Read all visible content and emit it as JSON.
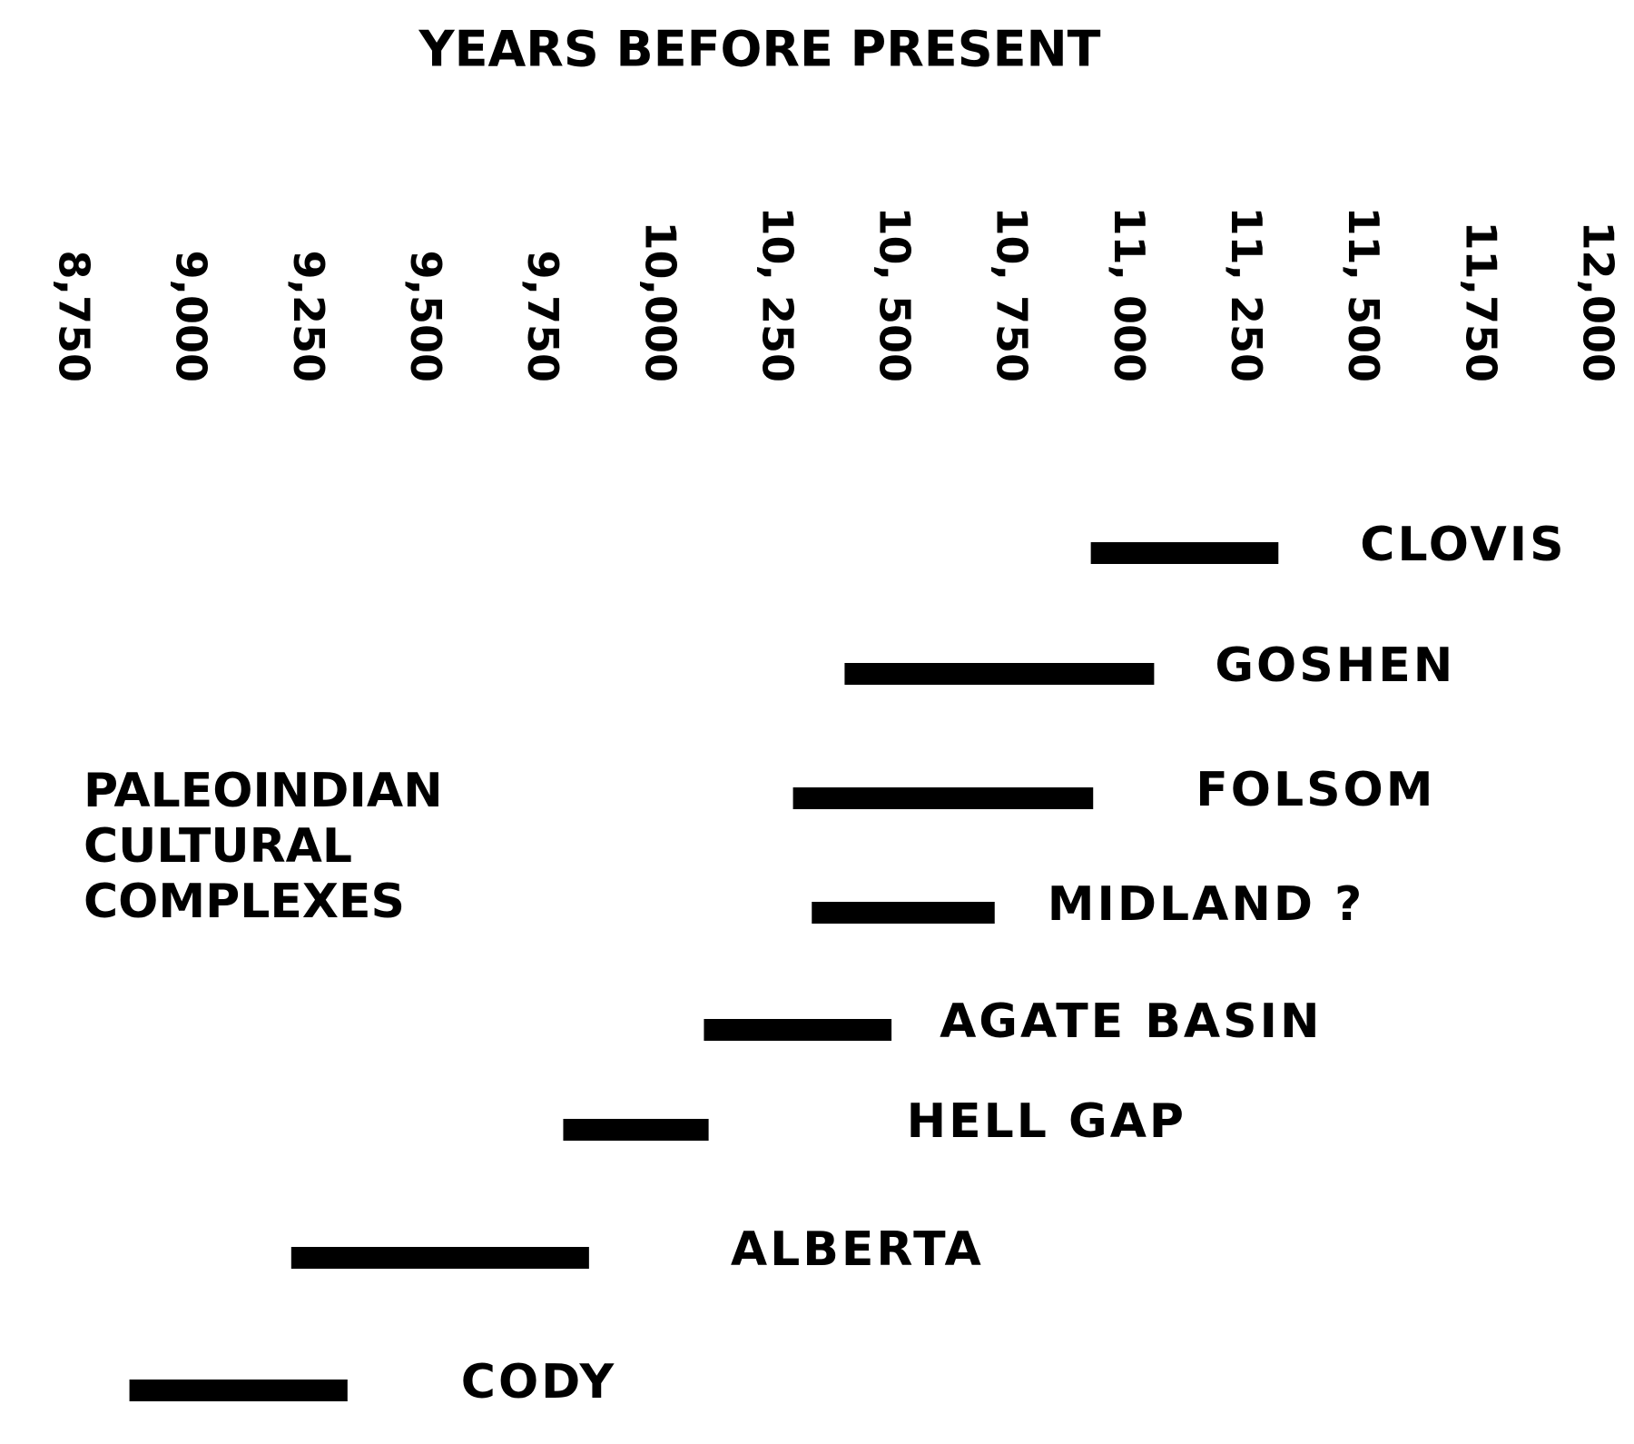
{
  "chart_data": {
    "type": "range",
    "title": "YEARS BEFORE PRESENT",
    "annotation": [
      "PALEOINDIAN",
      "CULTURAL",
      "COMPLEXES"
    ],
    "categories": [
      "CLOVIS",
      "GOSHEN",
      "FOLSOM",
      "MIDLAND ?",
      "AGATE BASIN",
      "HELL GAP",
      "ALBERTA",
      "CODY"
    ],
    "ranges": [
      [
        10925,
        11325
      ],
      [
        10400,
        11060
      ],
      [
        10290,
        10930
      ],
      [
        10330,
        10720
      ],
      [
        10100,
        10500
      ],
      [
        9800,
        10110
      ],
      [
        9220,
        9855
      ],
      [
        8875,
        9340
      ]
    ],
    "color": "#000000",
    "xlim": [
      8750,
      12000
    ],
    "xticks": [
      {
        "value": 8750,
        "label": "8,750"
      },
      {
        "value": 9000,
        "label": "9,000"
      },
      {
        "value": 9250,
        "label": "9,250"
      },
      {
        "value": 9500,
        "label": "9,500"
      },
      {
        "value": 9750,
        "label": "9,750"
      },
      {
        "value": 10000,
        "label": "10,000"
      },
      {
        "value": 10250,
        "label": "10, 250"
      },
      {
        "value": 10500,
        "label": "10, 500"
      },
      {
        "value": 10750,
        "label": "10, 750"
      },
      {
        "value": 11000,
        "label": "11, 000"
      },
      {
        "value": 11250,
        "label": "11, 250"
      },
      {
        "value": 11500,
        "label": "11, 500"
      },
      {
        "value": 11750,
        "label": "11,750"
      },
      {
        "value": 12000,
        "label": "12,000"
      }
    ]
  }
}
